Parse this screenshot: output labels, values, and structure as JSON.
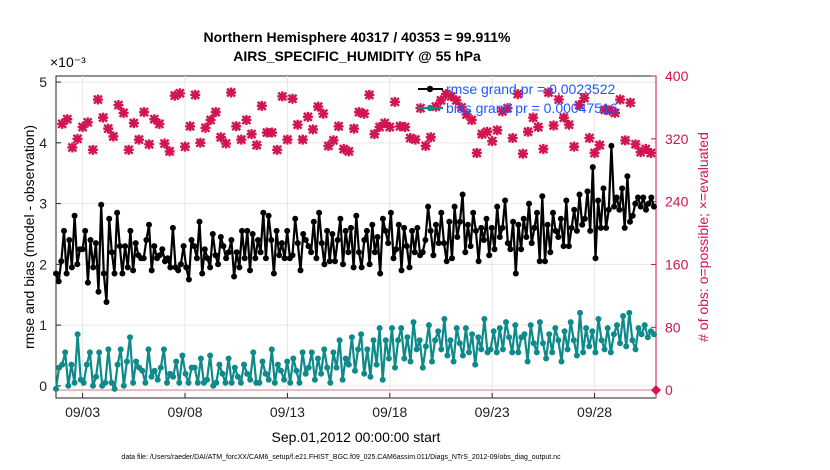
{
  "chart_data": {
    "type": "line",
    "title": "Northern Hemisphere 40317 / 40353 = 99.911%",
    "subtitle": "AIRS_SPECIFIC_HUMIDITY @ 55 hPa",
    "xlabel": "Sep.01,2012 00:00:00 start",
    "ylabel": "rmse and bias (model - observation)",
    "y2label": "# of obs: o=possible; ×=evaluated",
    "y_exponent": "×10⁻³",
    "footnote": "data file: /Users/raeder/DAI/ATM_forcXX/CAM6_setup/f.e21.FHIST_BGC.f09_025.CAM6assim.011/Diags_NTrS_2012-09/obs_diag_output.nc",
    "x_ticks": [
      "09/03",
      "09/08",
      "09/13",
      "09/18",
      "09/23",
      "09/28"
    ],
    "x_tick_days": [
      3,
      8,
      13,
      18,
      23,
      28
    ],
    "xlim": [
      1.7,
      31
    ],
    "ylim": [
      -0.2,
      5.1
    ],
    "y_ticks": [
      "0",
      "1",
      "2",
      "3",
      "4",
      "5"
    ],
    "y2lim": [
      -10,
      400
    ],
    "y2_ticks": [
      "0",
      "80",
      "160",
      "240",
      "320",
      "400"
    ],
    "grid": true,
    "legend_position": "top-right",
    "colors": {
      "rmse": "#000000",
      "bias": "#0f8a8a",
      "obs": "#d0154f",
      "axis_right": "#d0154f",
      "legend_text": "#1f57ff"
    },
    "series": [
      {
        "name": "rmse grand pr = 0.0023522",
        "axis": "left",
        "values": [
          1.85,
          1.72,
          2.05,
          2.55,
          1.85,
          2.4,
          1.95,
          2.8,
          2.0,
          2.25,
          2.25,
          2.55,
          1.7,
          2.4,
          1.95,
          2.35,
          1.55,
          2.98,
          1.85,
          1.38,
          2.75,
          2.2,
          1.85,
          2.85,
          2.3,
          1.85,
          2.3,
          1.95,
          2.55,
          1.9,
          2.35,
          2.15,
          2.1,
          2.1,
          2.4,
          2.65,
          1.9,
          2.3,
          2.1,
          2.15,
          2.25,
          2.05,
          2.1,
          1.95,
          2.6,
          1.95,
          1.9,
          2.0,
          2.3,
          1.95,
          1.75,
          2.4,
          2.3,
          2.1,
          2.7,
          1.85,
          2.25,
          2.1,
          1.95,
          2.5,
          2.15,
          2.0,
          2.45,
          2.3,
          2.1,
          2.2,
          2.4,
          1.8,
          2.2,
          1.95,
          2.55,
          2.1,
          2.55,
          1.9,
          2.5,
          2.1,
          2.4,
          2.2,
          2.85,
          2.1,
          2.8,
          2.4,
          1.85,
          2.55,
          2.15,
          2.35,
          2.1,
          2.55,
          2.1,
          2.15,
          2.75,
          2.35,
          1.9,
          2.5,
          2.4,
          2.3,
          2.2,
          2.7,
          2.1,
          2.85,
          2.35,
          2.0,
          2.55,
          2.05,
          2.5,
          2.05,
          2.4,
          2.75,
          2.0,
          2.55,
          2.2,
          2.6,
          1.95,
          2.8,
          2.2,
          1.95,
          2.4,
          2.55,
          2.0,
          2.65,
          2.2,
          2.45,
          1.85,
          2.75,
          2.55,
          2.35,
          2.85,
          2.1,
          2.25,
          2.65,
          1.9,
          2.6,
          2.3,
          1.95,
          2.55,
          2.2,
          2.6,
          2.15,
          2.2,
          2.4,
          2.95,
          2.55,
          2.15,
          2.65,
          2.35,
          2.85,
          2.35,
          2.05,
          2.7,
          2.1,
          2.95,
          2.45,
          2.7,
          3.15,
          2.2,
          2.65,
          2.3,
          2.85,
          2.55,
          2.05,
          2.6,
          2.4,
          2.75,
          2.15,
          2.6,
          2.25,
          2.95,
          2.45,
          2.6,
          3.05,
          2.35,
          2.25,
          2.7,
          1.85,
          2.65,
          2.25,
          2.75,
          2.45,
          3.0,
          2.35,
          2.6,
          2.85,
          2.05,
          3.12,
          2.05,
          2.65,
          2.2,
          2.85,
          2.55,
          2.45,
          2.75,
          2.3,
          3.05,
          2.3,
          2.6,
          2.9,
          2.55,
          3.15,
          2.65,
          2.75,
          3.2,
          2.55,
          3.6,
          2.1,
          3.05,
          2.6,
          3.25,
          2.6,
          2.9,
          3.95,
          2.95,
          3.1,
          2.9,
          3.25,
          2.6,
          3.45,
          2.7,
          2.8,
          3.0,
          3.1,
          2.95,
          3.1,
          2.9,
          3.0,
          3.1,
          2.95
        ]
      },
      {
        "name": "bias grand pr = 0.00047516",
        "axis": "left",
        "values": [
          -0.05,
          0.3,
          0.35,
          0.55,
          0.0,
          0.35,
          0.05,
          0.85,
          0.1,
          0.05,
          0.35,
          0.55,
          0.0,
          0.15,
          0.55,
          0.0,
          0.05,
          0.6,
          0.05,
          -0.05,
          0.35,
          0.6,
          0.0,
          0.4,
          0.8,
          0.05,
          0.4,
          0.3,
          0.25,
          0.05,
          0.6,
          0.15,
          0.25,
          0.1,
          0.3,
          0.6,
          0.05,
          0.2,
          0.15,
          0.4,
          0.05,
          0.5,
          0.2,
          0.05,
          0.3,
          0.3,
          0.05,
          0.45,
          0.05,
          0.1,
          0.5,
          0.0,
          0.05,
          0.35,
          0.2,
          0.05,
          0.45,
          0.05,
          0.3,
          0.15,
          0.05,
          0.35,
          0.2,
          0.1,
          0.55,
          0.05,
          0.05,
          0.4,
          0.2,
          0.1,
          0.6,
          0.05,
          0.35,
          0.25,
          0.1,
          0.4,
          0.05,
          0.45,
          0.25,
          0.05,
          0.55,
          0.2,
          0.3,
          0.55,
          0.1,
          0.45,
          0.2,
          0.6,
          0.3,
          0.05,
          0.55,
          0.3,
          0.75,
          0.1,
          0.45,
          0.35,
          0.8,
          0.25,
          0.6,
          0.85,
          0.2,
          0.6,
          0.15,
          0.75,
          0.35,
          0.95,
          0.1,
          0.75,
          0.45,
          0.95,
          0.3,
          0.75,
          0.95,
          0.45,
          0.8,
          0.4,
          1.05,
          0.6,
          0.75,
          0.3,
          0.65,
          1.0,
          0.4,
          0.75,
          0.9,
          0.6,
          1.1,
          0.5,
          0.75,
          0.4,
          0.95,
          0.7,
          0.5,
          0.95,
          0.55,
          0.85,
          0.35,
          0.8,
          0.6,
          1.1,
          0.55,
          0.6,
          0.9,
          0.55,
          0.95,
          0.6,
          1.05,
          0.8,
          0.55,
          1.0,
          0.55,
          0.8,
          0.85,
          0.4,
          1.0,
          0.7,
          0.55,
          1.05,
          0.7,
          0.45,
          0.85,
          0.55,
          0.95,
          0.75,
          0.4,
          0.9,
          0.6,
          1.05,
          0.75,
          0.5,
          1.2,
          0.55,
          0.95,
          0.65,
          0.9,
          0.55,
          1.1,
          0.75,
          0.6,
          0.95,
          0.55,
          0.85,
          1.0,
          0.7,
          1.15,
          0.65,
          1.2,
          0.75,
          0.6,
          0.95,
          0.85,
          1.0,
          0.8,
          0.9,
          0.85
        ]
      },
      {
        "name": "obs_possible",
        "axis": "right",
        "values": []
      },
      {
        "name": "obs_evaluated",
        "axis": "right",
        "values": []
      }
    ],
    "legend": [
      "rmse grand pr = 0.0023522",
      "bias grand pr = 0.00047516"
    ]
  }
}
